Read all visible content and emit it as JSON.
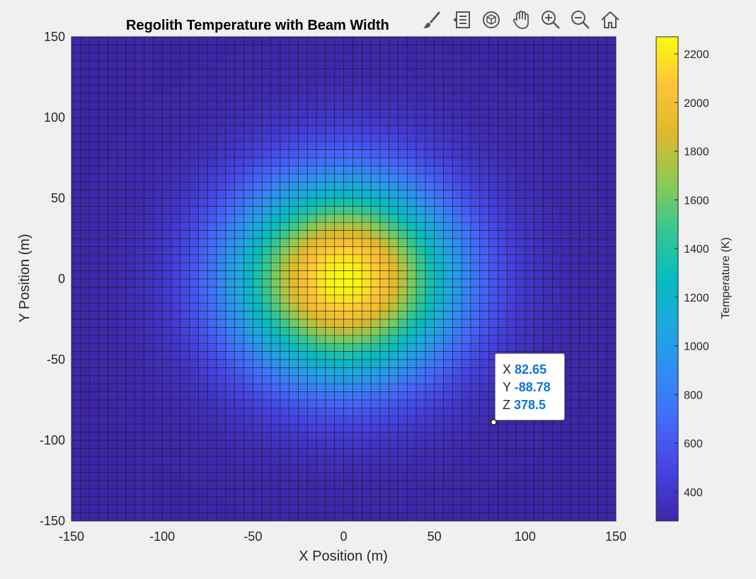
{
  "chart_data": {
    "type": "heatmap",
    "title": "Regolith Temperature with Beam Width",
    "xlabel": "X Position (m)",
    "ylabel": "Y Position (m)",
    "colorbar_label": "Temperature (K)",
    "xlim": [
      -150,
      150
    ],
    "ylim": [
      -150,
      150
    ],
    "clim": [
      280,
      2270
    ],
    "x_ticks": [
      -150,
      -100,
      -50,
      0,
      50,
      100,
      150
    ],
    "y_ticks": [
      -150,
      -100,
      -50,
      0,
      50,
      100,
      150
    ],
    "colorbar_ticks": [
      400,
      600,
      800,
      1000,
      1200,
      1400,
      1600,
      1800,
      2000,
      2200
    ],
    "grid_cells_per_axis": 60,
    "colormap": "parula",
    "temperature_field": {
      "peak": 2270,
      "background": 280,
      "center_x": 0,
      "center_y": 0,
      "sigma": 43
    },
    "datatip": {
      "x": "82.65",
      "y": "-88.78",
      "z": "378.5",
      "x_value": 82.65,
      "y_value": -88.78
    }
  },
  "datatip_labels": {
    "x": "X",
    "y": "Y",
    "z": "Z"
  },
  "toolbar": [
    "brush-icon",
    "legend-icon",
    "rotate-3d-icon",
    "pan-hand-icon",
    "zoom-in-icon",
    "zoom-out-icon",
    "home-icon"
  ],
  "colors": {
    "background": "#f0f0f0",
    "datatip_value": "#0e73d8",
    "grid_line": "#1a1a1a"
  }
}
